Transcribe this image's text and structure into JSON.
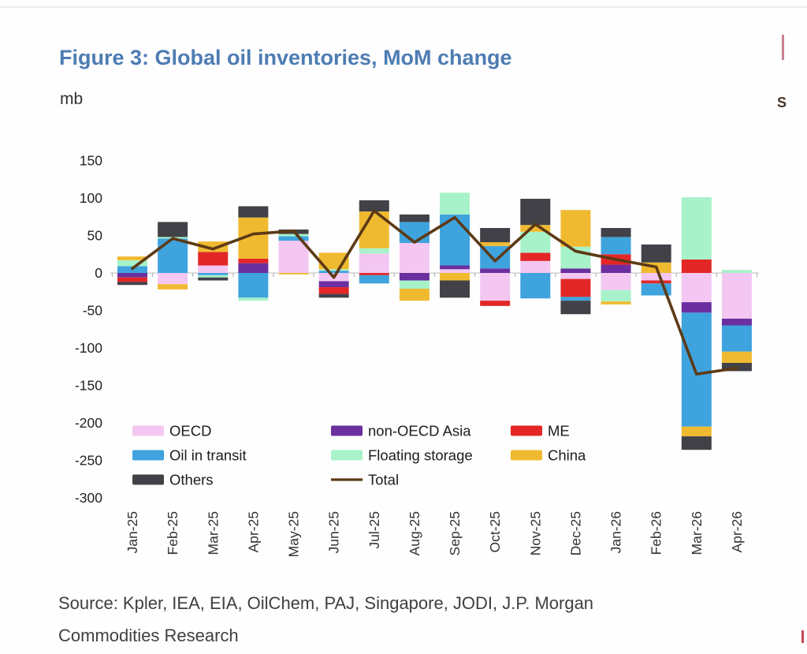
{
  "page": {
    "title": "Figure 3: Global oil inventories, MoM change",
    "title_color": "#4d7cb3",
    "unit_label": "mb",
    "source_line1": "Source: Kpler, IEA, EIA, OilChem, PAJ, Singapore, JODI, J.P. Morgan",
    "source_line2": "Commodities Research",
    "edge_artifact_text": "S"
  },
  "chart_data": {
    "type": "bar",
    "subtype": "stacked-bar-with-line",
    "title": "Figure 3: Global oil inventories, MoM change",
    "ylabel": "mb",
    "xlabel": "",
    "ylim": [
      -300,
      150
    ],
    "y_ticks": [
      150,
      100,
      50,
      0,
      -50,
      -100,
      -150,
      -200,
      -250,
      -300
    ],
    "grid": "zero-line-only",
    "legend_position": "inside-bottom-left",
    "categories": [
      "Jan-25",
      "Feb-25",
      "Mar-25",
      "Apr-25",
      "May-25",
      "Jun-25",
      "Jul-25",
      "Aug-25",
      "Sep-25",
      "Oct-25",
      "Nov-25",
      "Dec-25",
      "Jan-26",
      "Feb-26",
      "Mar-26",
      "Apr-26"
    ],
    "series": [
      {
        "name": "OECD",
        "color": "#f3c7f1",
        "values": [
          0,
          -15,
          10,
          0,
          43,
          -11,
          26,
          40,
          5,
          -37,
          16,
          -8,
          -23,
          -10,
          -39,
          -61
        ]
      },
      {
        "name": "non-OECD Asia",
        "color": "#6b2f9f",
        "values": [
          -6,
          0,
          0,
          13,
          0,
          -8,
          0,
          -10,
          5,
          6,
          0,
          6,
          11,
          0,
          -14,
          -9
        ]
      },
      {
        "name": "ME",
        "color": "#e22726",
        "values": [
          -6,
          0,
          18,
          6,
          0,
          -9,
          -3,
          0,
          0,
          -7,
          11,
          -24,
          14,
          -4,
          18,
          0
        ]
      },
      {
        "name": "Oil in transit",
        "color": "#3fa3de",
        "values": [
          9,
          46,
          -3,
          -33,
          6,
          3,
          -11,
          28,
          68,
          30,
          -34,
          -5,
          23,
          -16,
          -152,
          -35
        ]
      },
      {
        "name": "Floating storage",
        "color": "#a7f2c9",
        "values": [
          8,
          2,
          -3,
          -4,
          3,
          2,
          7,
          -11,
          29,
          0,
          28,
          29,
          -15,
          0,
          83,
          4
        ]
      },
      {
        "name": "China",
        "color": "#f0ba30",
        "values": [
          5,
          -7,
          14,
          55,
          -2,
          22,
          49,
          -16,
          -10,
          5,
          9,
          49,
          -4,
          14,
          -13,
          -15
        ]
      },
      {
        "name": "Others",
        "color": "#414147",
        "values": [
          -4,
          20,
          -4,
          15,
          6,
          -5,
          15,
          10,
          -23,
          19,
          35,
          -18,
          12,
          24,
          -18,
          -11
        ]
      }
    ],
    "total_line": {
      "name": "Total",
      "color": "#5c3a16",
      "values": [
        6,
        46,
        32,
        52,
        56,
        -6,
        83,
        41,
        74,
        16,
        65,
        29,
        18,
        8,
        -135,
        -127
      ]
    },
    "legend_columns": [
      [
        {
          "label": "OECD",
          "kind": "swatch",
          "color": "#f3c7f1"
        },
        {
          "label": "Oil in transit",
          "kind": "swatch",
          "color": "#3fa3de"
        },
        {
          "label": "Others",
          "kind": "swatch",
          "color": "#414147"
        }
      ],
      [
        {
          "label": "non-OECD Asia",
          "kind": "swatch",
          "color": "#6b2f9f"
        },
        {
          "label": "Floating storage",
          "kind": "swatch",
          "color": "#a7f2c9"
        },
        {
          "label": "Total",
          "kind": "line",
          "color": "#5c3a16"
        }
      ],
      [
        {
          "label": "ME",
          "kind": "swatch",
          "color": "#e22726"
        },
        {
          "label": "China",
          "kind": "swatch",
          "color": "#f0ba30"
        }
      ]
    ]
  }
}
